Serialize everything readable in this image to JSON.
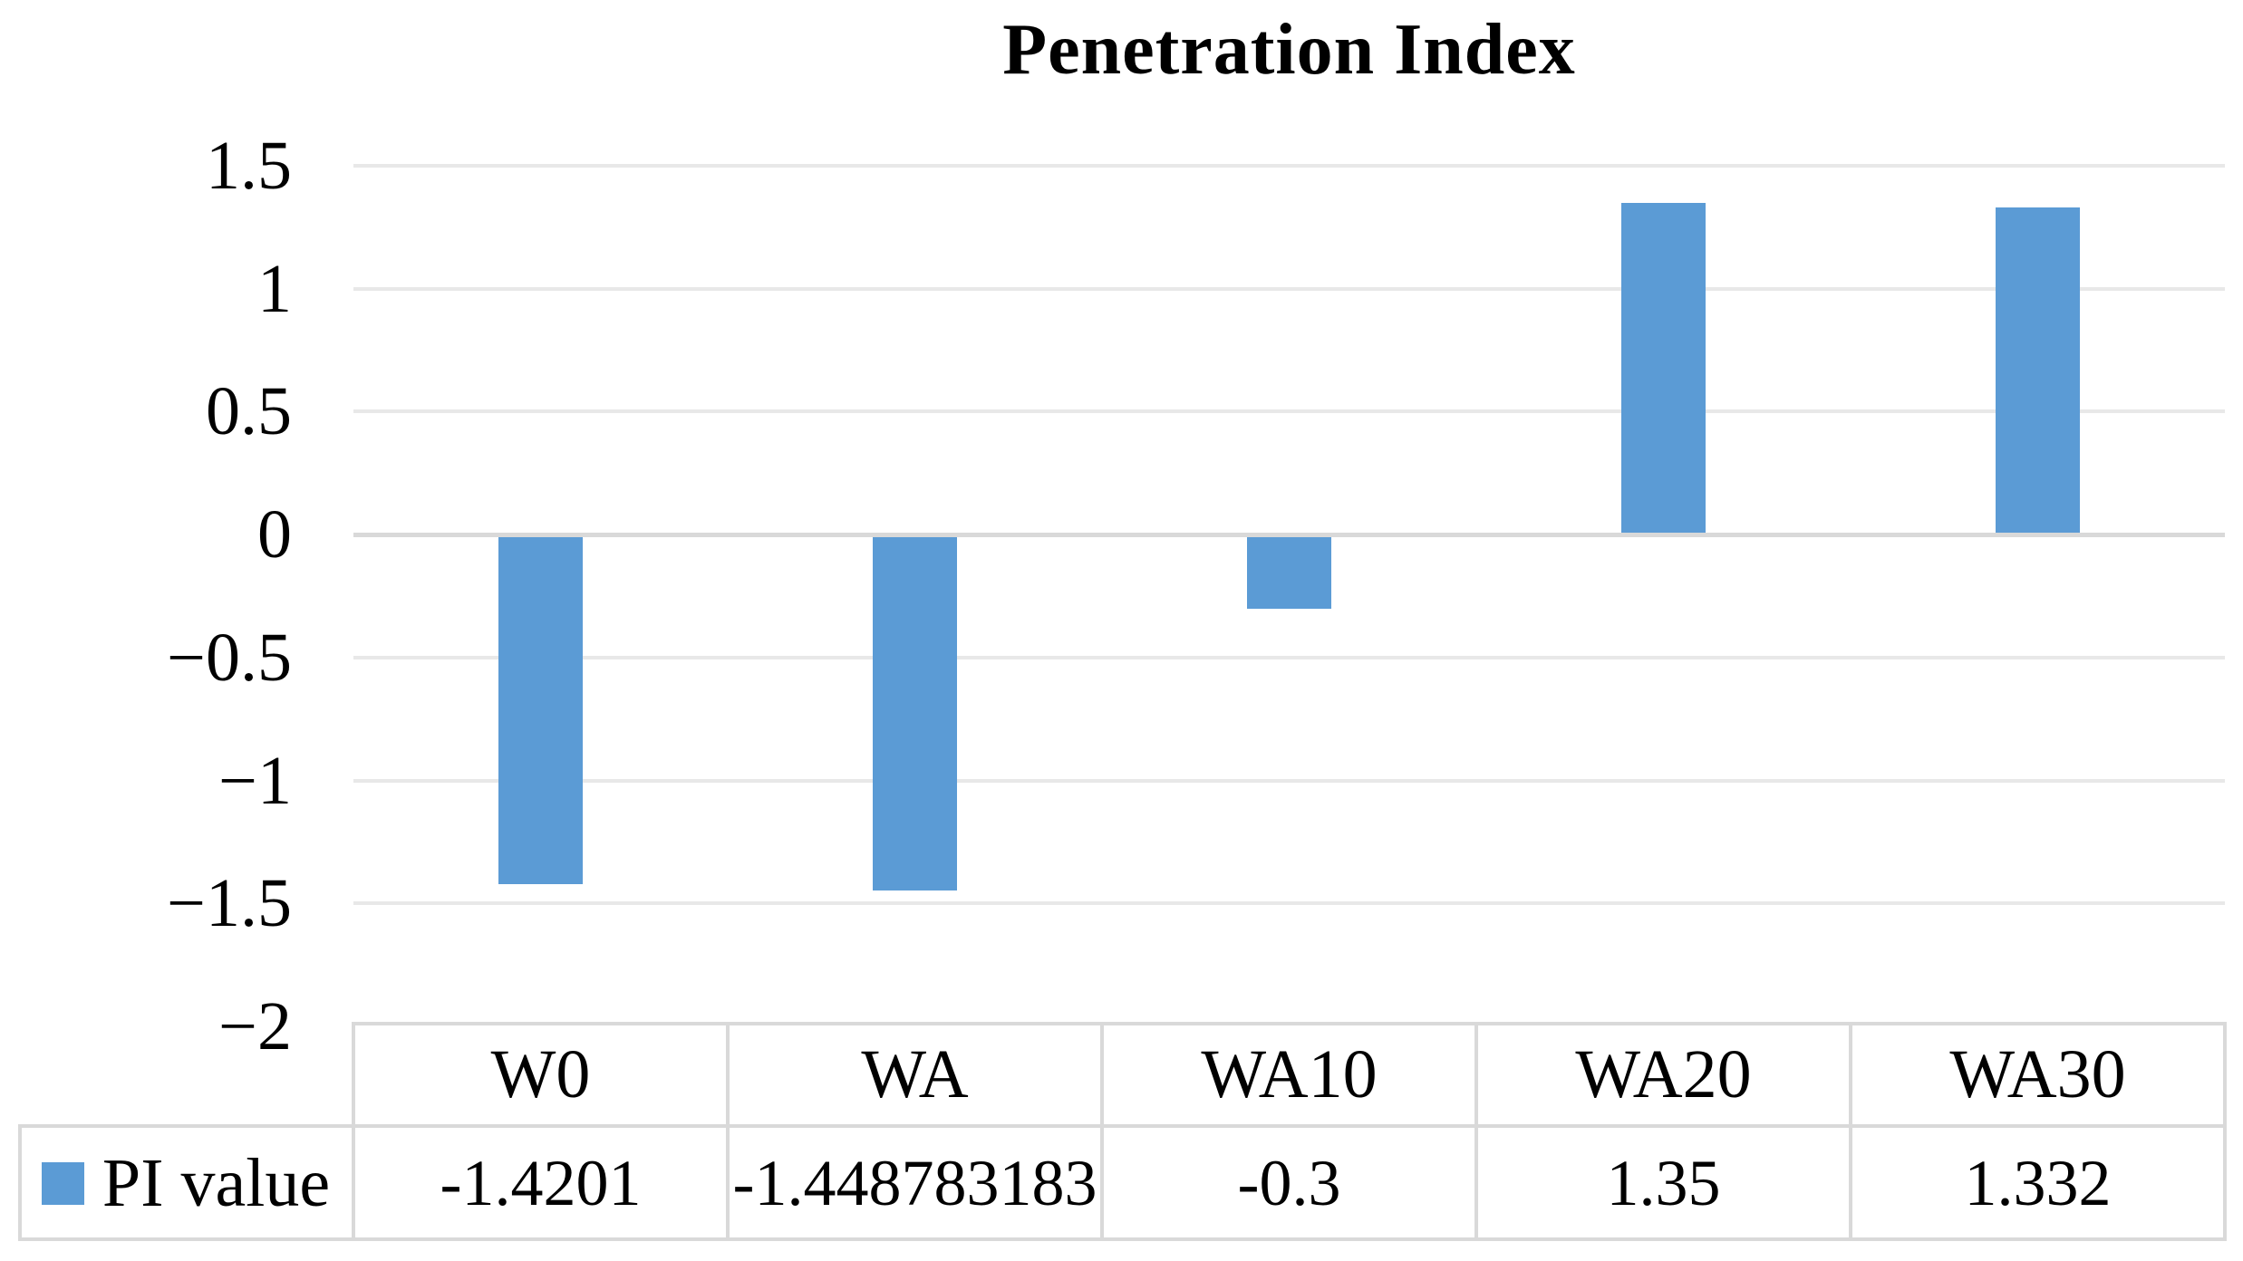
{
  "title": "Penetration Index",
  "colors": {
    "bar": "#5B9BD5",
    "gridline": "#E8E8E8",
    "zero_line": "#D9D9D9",
    "table_border": "#D9D9D9",
    "text": "#000000",
    "background": "#FFFFFF"
  },
  "y_axis": {
    "tick_labels": [
      "1.5",
      "1",
      "0.5",
      "0",
      "−0.5",
      "−1",
      "−1.5",
      "−2"
    ],
    "tick_values": [
      1.5,
      1,
      0.5,
      0,
      -0.5,
      -1,
      -1.5,
      -2
    ]
  },
  "legend": {
    "label": "PI value",
    "swatch_color": "#5B9BD5"
  },
  "table": {
    "categories": [
      "W0",
      "WA",
      "WA10",
      "WA20",
      "WA30"
    ],
    "values_text": [
      "-1.4201",
      "-1.448783183",
      "-0.3",
      "1.35",
      "1.332"
    ]
  },
  "chart_data": {
    "type": "bar",
    "title": "Penetration Index",
    "categories": [
      "W0",
      "WA",
      "WA10",
      "WA20",
      "WA30"
    ],
    "series": [
      {
        "name": "PI value",
        "values": [
          -1.4201,
          -1.448783183,
          -0.3,
          1.35,
          1.332
        ]
      }
    ],
    "xlabel": "",
    "ylabel": "",
    "ylim": [
      -2,
      1.5
    ],
    "ytick_interval": 0.5,
    "grid": "horizontal",
    "legend_position": "bottom-left-data-table",
    "bar_color": "#5B9BD5"
  }
}
